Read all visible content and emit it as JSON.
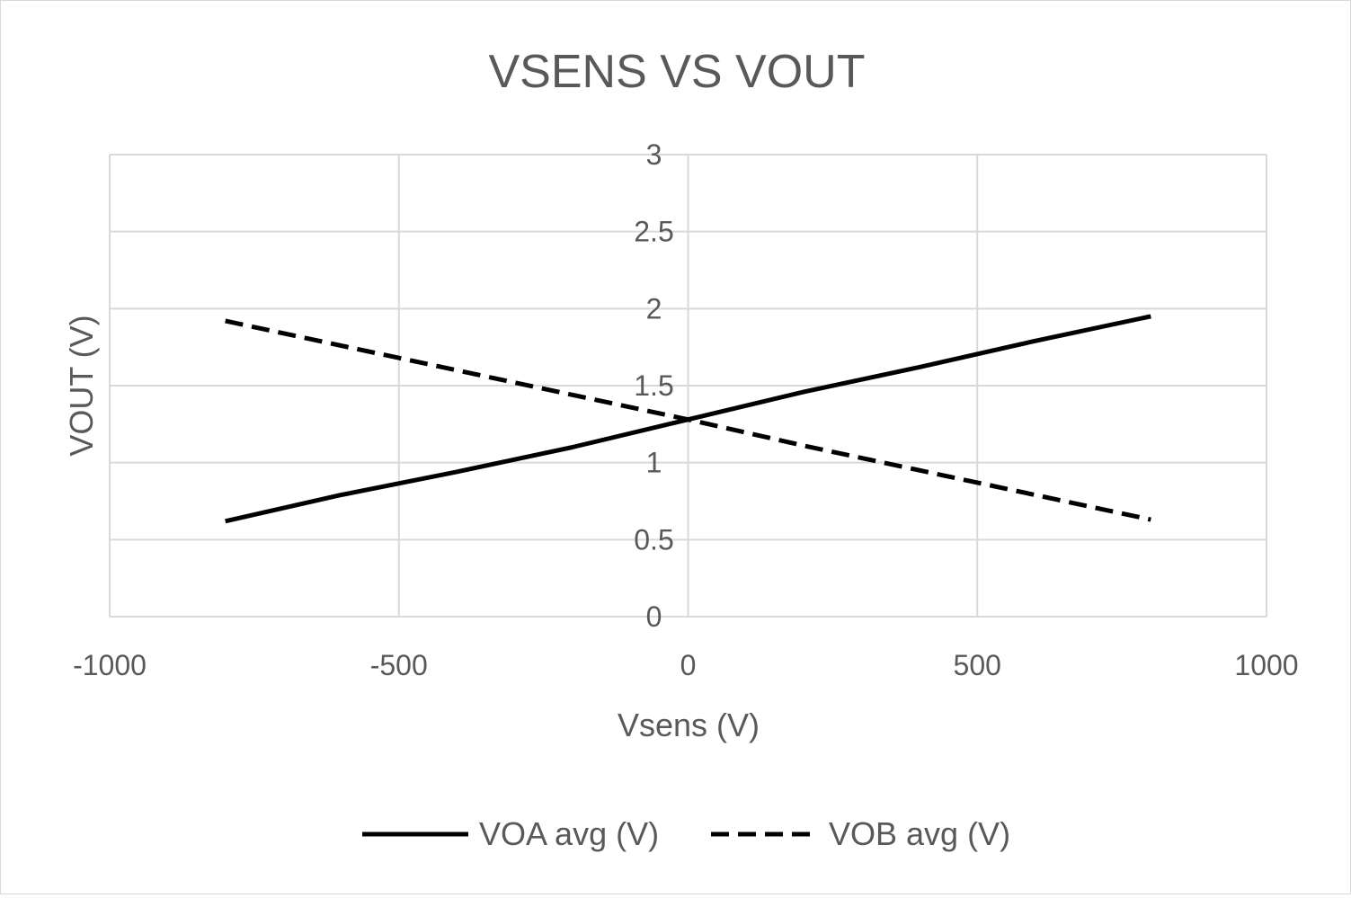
{
  "chart_data": {
    "type": "line",
    "title": "VSENS VS VOUT",
    "xlabel": "Vsens (V)",
    "ylabel": "VOUT (V)",
    "xlim": [
      -1000,
      1000
    ],
    "ylim": [
      0,
      3
    ],
    "xticks": [
      -1000,
      -500,
      0,
      500,
      1000
    ],
    "yticks": [
      0,
      0.5,
      1,
      1.5,
      2,
      2.5,
      3
    ],
    "xtick_labels": [
      "-1000",
      "-500",
      "0",
      "500",
      "1000"
    ],
    "ytick_labels": [
      "0",
      "0.5",
      "1",
      "1.5",
      "2",
      "2.5",
      "3"
    ],
    "grid": true,
    "legend_position": "bottom",
    "series": [
      {
        "name": "VOA avg (V)",
        "style": "solid",
        "color": "#000000",
        "x": [
          -800,
          -600,
          -400,
          -200,
          0,
          200,
          400,
          600,
          800
        ],
        "y": [
          0.62,
          0.79,
          0.94,
          1.1,
          1.28,
          1.46,
          1.62,
          1.79,
          1.95
        ]
      },
      {
        "name": "VOB avg (V)",
        "style": "dashed",
        "color": "#000000",
        "x": [
          -800,
          -600,
          -400,
          -200,
          0,
          200,
          400,
          600,
          800
        ],
        "y": [
          1.92,
          1.76,
          1.6,
          1.44,
          1.28,
          1.11,
          0.95,
          0.79,
          0.63
        ]
      }
    ]
  }
}
